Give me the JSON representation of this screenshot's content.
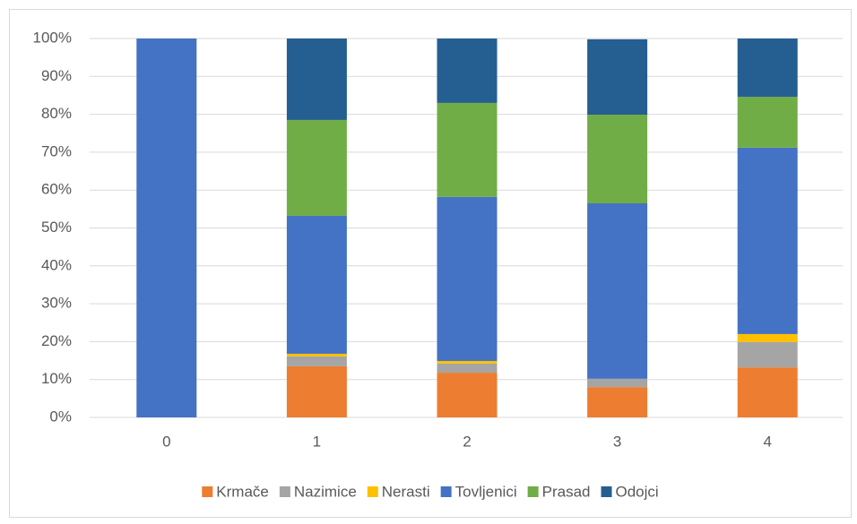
{
  "chart_data": {
    "type": "stacked_bar_100",
    "categories": [
      "0",
      "1",
      "2",
      "3",
      "4"
    ],
    "series": [
      {
        "name": "Krmače",
        "color": "#ed7d31",
        "values": [
          0,
          13.5,
          11.8,
          8.0,
          13.2
        ]
      },
      {
        "name": "Nazimice",
        "color": "#a5a5a5",
        "values": [
          0,
          2.6,
          2.4,
          2.2,
          6.7
        ]
      },
      {
        "name": "Nerasti",
        "color": "#ffc000",
        "values": [
          0,
          0.7,
          0.7,
          0,
          2.1
        ]
      },
      {
        "name": "Tovljenici",
        "color": "#4472c4",
        "values": [
          100,
          36.4,
          43.3,
          46.3,
          49.2
        ]
      },
      {
        "name": "Prasad",
        "color": "#70ad47",
        "values": [
          0,
          25.3,
          24.8,
          23.4,
          13.4
        ]
      },
      {
        "name": "Odojci",
        "color": "#255e91",
        "values": [
          0,
          21.5,
          17.0,
          19.9,
          15.4
        ]
      }
    ],
    "ylim": [
      0,
      100
    ],
    "yticks": [
      {
        "value": 0,
        "label": "0%"
      },
      {
        "value": 10,
        "label": "10%"
      },
      {
        "value": 20,
        "label": "20%"
      },
      {
        "value": 30,
        "label": "30%"
      },
      {
        "value": 40,
        "label": "40%"
      },
      {
        "value": 50,
        "label": "50%"
      },
      {
        "value": 60,
        "label": "60%"
      },
      {
        "value": 70,
        "label": "70%"
      },
      {
        "value": 80,
        "label": "80%"
      },
      {
        "value": 90,
        "label": "90%"
      },
      {
        "value": 100,
        "label": "100%"
      }
    ],
    "grid": true,
    "legend": "bottom"
  }
}
